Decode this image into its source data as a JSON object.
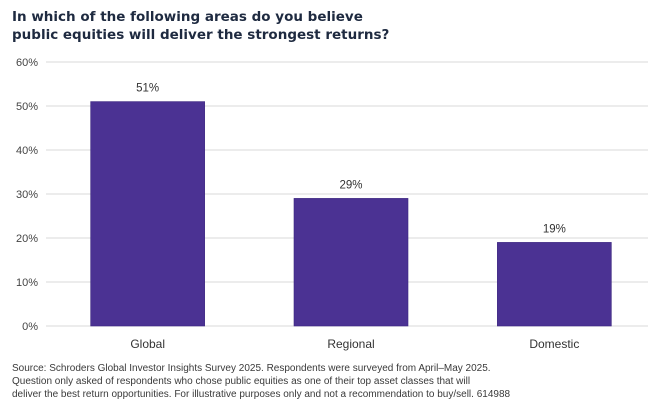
{
  "chart_data": {
    "type": "bar",
    "title": "In which of the following areas do you believe public equities will deliver the strongest returns?",
    "title_lines": [
      "In which of the following areas do you believe",
      "public equities will deliver the strongest returns?"
    ],
    "categories": [
      "Global",
      "Regional",
      "Domestic"
    ],
    "values": [
      51,
      29,
      19
    ],
    "value_labels": [
      "51%",
      "29%",
      "19%"
    ],
    "xlabel": "",
    "ylabel": "",
    "ylim": [
      0,
      60
    ],
    "yticks": [
      0,
      10,
      20,
      30,
      40,
      50,
      60
    ],
    "ytick_labels": [
      "0%",
      "10%",
      "20%",
      "30%",
      "40%",
      "50%",
      "60%"
    ],
    "grid": true,
    "legend": "none",
    "bar_color": "#4b3293"
  },
  "footer": {
    "source_lines": [
      "Source: Schroders Global Investor Insights Survey 2025. Respondents were surveyed from April–May 2025.",
      "Question only asked of respondents who chose public equities as one of their top asset classes that will",
      "deliver the best return opportunities. For illustrative purposes only and not a recommendation to buy/sell. 614988"
    ]
  }
}
